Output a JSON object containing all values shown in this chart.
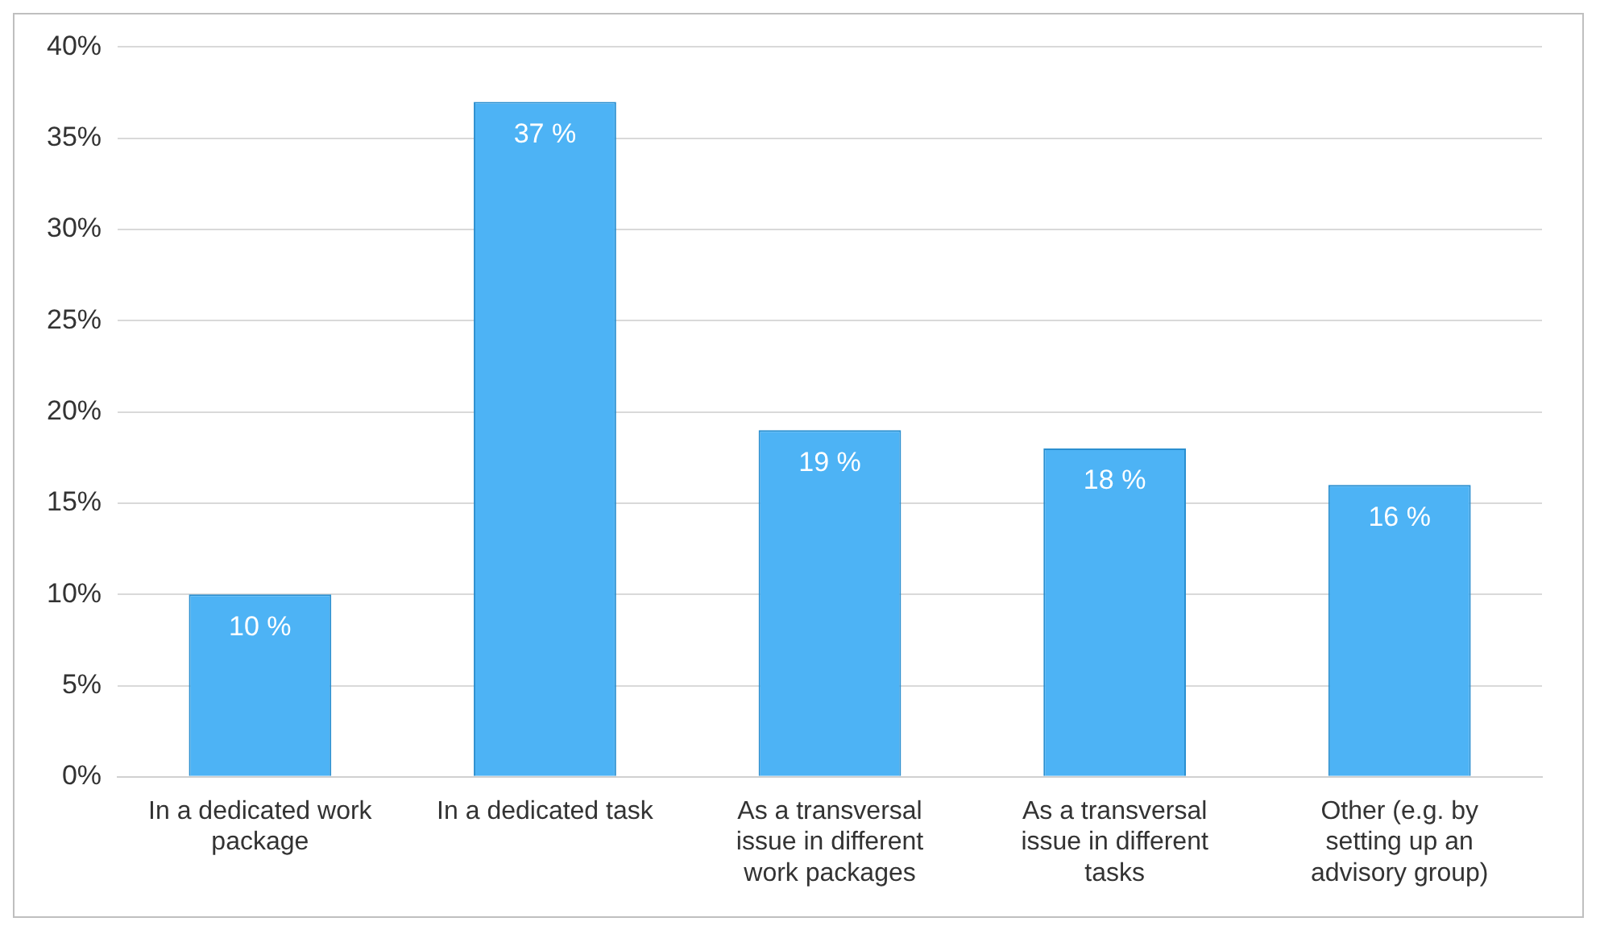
{
  "chart_data": {
    "type": "bar",
    "categories": [
      "In a dedicated work package",
      "In a dedicated task",
      "As a transversal issue in different work packages",
      "As a transversal issue in different tasks",
      "Other (e.g. by setting up an advisory group)"
    ],
    "values": [
      10,
      37,
      19,
      18,
      16
    ],
    "value_labels": [
      "10 %",
      "37 %",
      "19 %",
      "18 %",
      "16 %"
    ],
    "color": "#4db3f5",
    "ylim": [
      0,
      40
    ],
    "yticks": [
      {
        "value": 0,
        "label": "0%"
      },
      {
        "value": 5,
        "label": "5%"
      },
      {
        "value": 10,
        "label": "10%"
      },
      {
        "value": 15,
        "label": "15%"
      },
      {
        "value": 20,
        "label": "20%"
      },
      {
        "value": 25,
        "label": "25%"
      },
      {
        "value": 30,
        "label": "30%"
      },
      {
        "value": 35,
        "label": "35%"
      },
      {
        "value": 40,
        "label": "40%"
      }
    ],
    "grid": "y"
  }
}
